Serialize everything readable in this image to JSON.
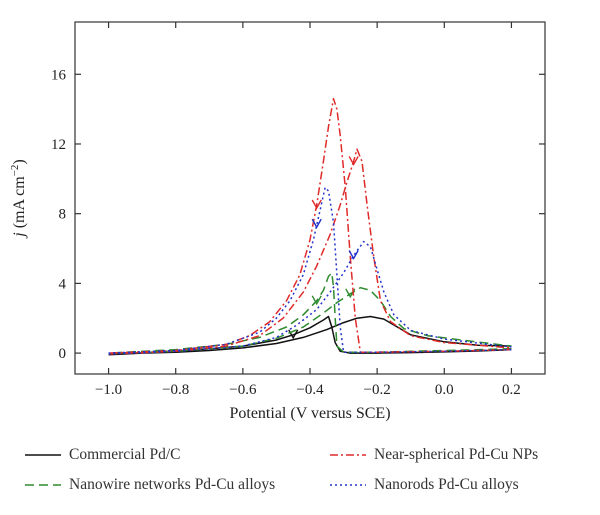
{
  "chart_data": {
    "type": "line",
    "xlabel": "Potential (V versus SCE)",
    "ylabel": {
      "italic": "j",
      "main": " (mA cm",
      "sup": "−2",
      "close": ")"
    },
    "xlim": [
      -1.1,
      0.3
    ],
    "ylim": [
      -1.2,
      19
    ],
    "xticks": [
      -1.0,
      -0.8,
      -0.6,
      -0.4,
      -0.2,
      0.0,
      0.2
    ],
    "xtick_labels": [
      "−1.0",
      "−0.8",
      "−0.6",
      "−0.4",
      "−0.2",
      "0.0",
      "0.2"
    ],
    "yticks": [
      0,
      4,
      8,
      12,
      16
    ],
    "ytick_labels": [
      "0",
      "4",
      "8",
      "12",
      "16"
    ],
    "grid": false,
    "legend_position": "bottom",
    "series": [
      {
        "name": "Commercial Pd/C",
        "color": "#111111",
        "dash": "",
        "forward": [
          [
            -1.0,
            -0.1
          ],
          [
            -0.9,
            0.0
          ],
          [
            -0.8,
            0.05
          ],
          [
            -0.7,
            0.15
          ],
          [
            -0.6,
            0.3
          ],
          [
            -0.5,
            0.55
          ],
          [
            -0.42,
            0.9
          ],
          [
            -0.35,
            1.35
          ],
          [
            -0.3,
            1.75
          ],
          [
            -0.26,
            2.0
          ],
          [
            -0.22,
            2.1
          ],
          [
            -0.18,
            1.95
          ],
          [
            -0.14,
            1.5
          ],
          [
            -0.1,
            1.05
          ],
          [
            0.0,
            0.65
          ],
          [
            0.1,
            0.45
          ],
          [
            0.2,
            0.4
          ]
        ],
        "reverse": [
          [
            0.2,
            0.2
          ],
          [
            0.1,
            0.12
          ],
          [
            0.0,
            0.07
          ],
          [
            -0.1,
            0.03
          ],
          [
            -0.2,
            0.0
          ],
          [
            -0.28,
            0.0
          ],
          [
            -0.31,
            0.1
          ],
          [
            -0.325,
            0.6
          ],
          [
            -0.335,
            1.5
          ],
          [
            -0.345,
            2.1
          ],
          [
            -0.36,
            1.9
          ],
          [
            -0.4,
            1.45
          ],
          [
            -0.45,
            1.05
          ],
          [
            -0.5,
            0.75
          ],
          [
            -0.6,
            0.4
          ],
          [
            -0.7,
            0.25
          ],
          [
            -0.8,
            0.12
          ],
          [
            -0.9,
            0.03
          ],
          [
            -1.0,
            -0.02
          ]
        ],
        "arrows": [
          [
            -0.45,
            1.05
          ]
        ]
      },
      {
        "name": "Nanowire networks Pd-Cu alloys",
        "color": "#2e8b2e",
        "dash": "9,5",
        "forward": [
          [
            -1.0,
            -0.05
          ],
          [
            -0.8,
            0.1
          ],
          [
            -0.6,
            0.4
          ],
          [
            -0.5,
            0.85
          ],
          [
            -0.42,
            1.5
          ],
          [
            -0.36,
            2.3
          ],
          [
            -0.32,
            2.9
          ],
          [
            -0.28,
            3.4
          ],
          [
            -0.25,
            3.75
          ],
          [
            -0.22,
            3.6
          ],
          [
            -0.19,
            3.0
          ],
          [
            -0.16,
            2.1
          ],
          [
            -0.12,
            1.4
          ],
          [
            -0.05,
            1.0
          ],
          [
            0.05,
            0.75
          ],
          [
            0.2,
            0.4
          ]
        ],
        "reverse": [
          [
            0.2,
            0.25
          ],
          [
            0.0,
            0.15
          ],
          [
            -0.2,
            0.05
          ],
          [
            -0.3,
            0.05
          ],
          [
            -0.32,
            0.4
          ],
          [
            -0.325,
            2.0
          ],
          [
            -0.33,
            3.8
          ],
          [
            -0.335,
            4.6
          ],
          [
            -0.345,
            4.4
          ],
          [
            -0.36,
            3.6
          ],
          [
            -0.38,
            3.0
          ],
          [
            -0.42,
            2.2
          ],
          [
            -0.47,
            1.5
          ],
          [
            -0.55,
            0.9
          ],
          [
            -0.65,
            0.5
          ],
          [
            -0.8,
            0.2
          ],
          [
            -1.0,
            0.0
          ]
        ],
        "arrows": [
          [
            -0.38,
            3.0
          ],
          [
            -0.28,
            3.4
          ]
        ]
      },
      {
        "name": "Near-spherical Pd-Cu NPs",
        "color": "#e02a2a",
        "dash": "8,3,2,3",
        "forward": [
          [
            -1.0,
            -0.05
          ],
          [
            -0.8,
            0.1
          ],
          [
            -0.65,
            0.4
          ],
          [
            -0.55,
            1.0
          ],
          [
            -0.48,
            2.0
          ],
          [
            -0.42,
            3.5
          ],
          [
            -0.38,
            5.0
          ],
          [
            -0.34,
            6.8
          ],
          [
            -0.31,
            8.5
          ],
          [
            -0.29,
            9.8
          ],
          [
            -0.27,
            11.0
          ],
          [
            -0.26,
            11.7
          ],
          [
            -0.245,
            11.0
          ],
          [
            -0.23,
            8.5
          ],
          [
            -0.21,
            5.5
          ],
          [
            -0.19,
            3.0
          ],
          [
            -0.16,
            1.8
          ],
          [
            -0.1,
            1.0
          ],
          [
            0.0,
            0.6
          ],
          [
            0.2,
            0.3
          ]
        ],
        "reverse": [
          [
            0.2,
            0.2
          ],
          [
            0.0,
            0.1
          ],
          [
            -0.2,
            0.05
          ],
          [
            -0.25,
            0.05
          ],
          [
            -0.265,
            2.0
          ],
          [
            -0.28,
            5.5
          ],
          [
            -0.295,
            9.5
          ],
          [
            -0.31,
            12.5
          ],
          [
            -0.32,
            14.0
          ],
          [
            -0.33,
            14.6
          ],
          [
            -0.345,
            13.0
          ],
          [
            -0.36,
            11.0
          ],
          [
            -0.38,
            8.5
          ],
          [
            -0.4,
            6.5
          ],
          [
            -0.43,
            4.5
          ],
          [
            -0.47,
            3.0
          ],
          [
            -0.52,
            1.8
          ],
          [
            -0.58,
            1.0
          ],
          [
            -0.65,
            0.5
          ],
          [
            -0.8,
            0.15
          ],
          [
            -1.0,
            0.0
          ]
        ],
        "arrows": [
          [
            -0.38,
            8.5
          ],
          [
            -0.27,
            11.0
          ]
        ]
      },
      {
        "name": "Nanorods Pd-Cu alloys",
        "color": "#2233cc",
        "dash": "2,3",
        "forward": [
          [
            -1.0,
            -0.05
          ],
          [
            -0.8,
            0.1
          ],
          [
            -0.6,
            0.4
          ],
          [
            -0.5,
            0.9
          ],
          [
            -0.44,
            1.6
          ],
          [
            -0.38,
            2.5
          ],
          [
            -0.34,
            3.5
          ],
          [
            -0.3,
            4.6
          ],
          [
            -0.27,
            5.6
          ],
          [
            -0.24,
            6.4
          ],
          [
            -0.22,
            6.1
          ],
          [
            -0.2,
            4.8
          ],
          [
            -0.18,
            3.5
          ],
          [
            -0.15,
            2.2
          ],
          [
            -0.1,
            1.3
          ],
          [
            0.0,
            0.8
          ],
          [
            0.2,
            0.35
          ]
        ],
        "reverse": [
          [
            0.2,
            0.2
          ],
          [
            0.0,
            0.1
          ],
          [
            -0.2,
            0.05
          ],
          [
            -0.3,
            0.05
          ],
          [
            -0.31,
            1.5
          ],
          [
            -0.32,
            4.5
          ],
          [
            -0.33,
            7.5
          ],
          [
            -0.345,
            9.3
          ],
          [
            -0.355,
            9.5
          ],
          [
            -0.37,
            8.2
          ],
          [
            -0.39,
            6.5
          ],
          [
            -0.42,
            4.5
          ],
          [
            -0.46,
            3.0
          ],
          [
            -0.5,
            2.0
          ],
          [
            -0.55,
            1.2
          ],
          [
            -0.65,
            0.5
          ],
          [
            -0.8,
            0.15
          ],
          [
            -1.0,
            0.0
          ]
        ],
        "arrows": [
          [
            -0.38,
            7.4
          ],
          [
            -0.27,
            5.6
          ]
        ]
      }
    ]
  }
}
